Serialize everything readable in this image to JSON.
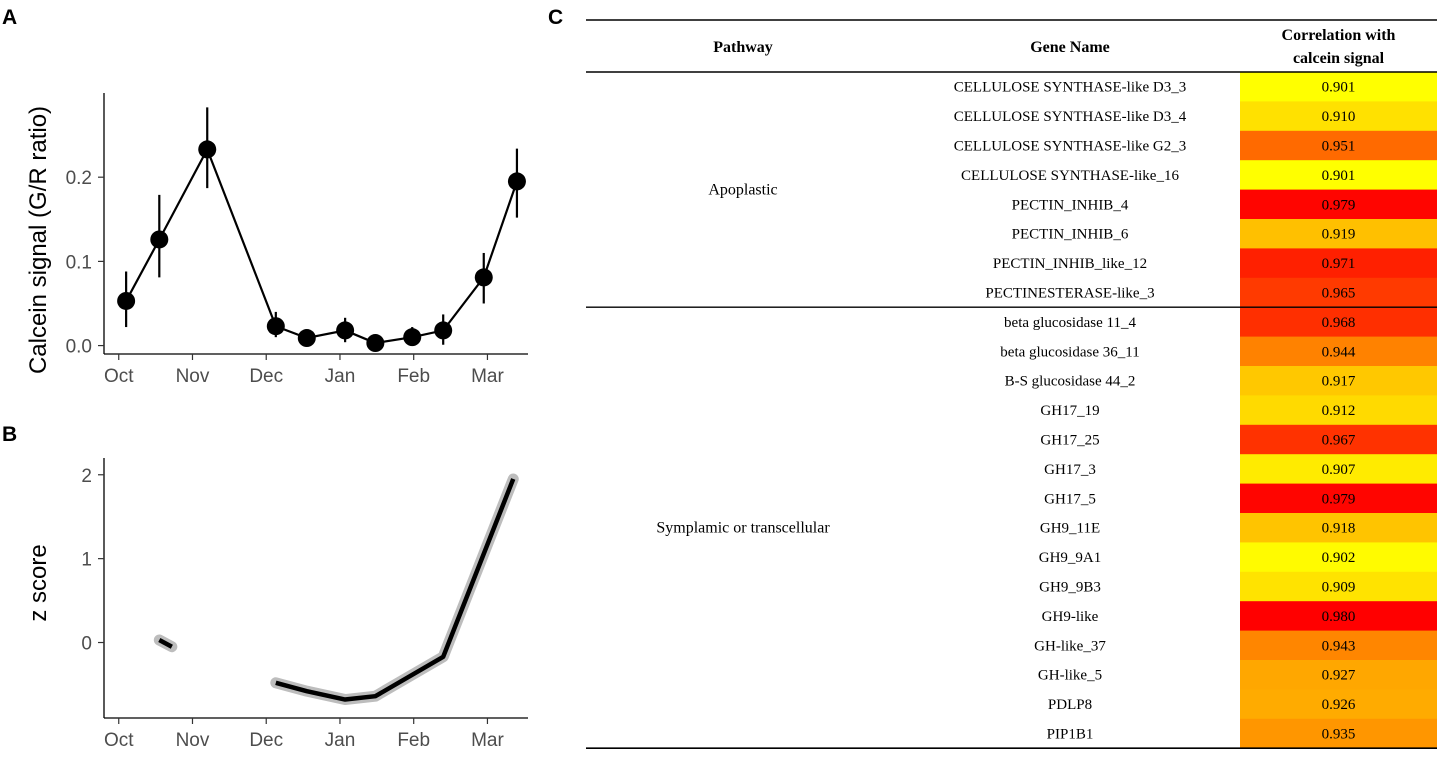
{
  "panels": {
    "a": "A",
    "b": "B",
    "c": "C"
  },
  "chart_data": [
    {
      "id": "A",
      "type": "scatter",
      "ylabel": "Calcein signal (G/R ratio)",
      "xlabel": "",
      "x_ticks": [
        "Oct",
        "Nov",
        "Dec",
        "Jan",
        "Feb",
        "Mar"
      ],
      "x_tick_positions": [
        0,
        1,
        2,
        3,
        4,
        5
      ],
      "xlim": [
        -0.2,
        5.55
      ],
      "ylim": [
        -0.01,
        0.3
      ],
      "y_ticks": [
        0.0,
        0.1,
        0.2
      ],
      "y_tick_labels": [
        "0.0",
        "0.1",
        "0.2"
      ],
      "points": [
        {
          "x": 0.1,
          "y": 0.053,
          "lo": 0.022,
          "hi": 0.088
        },
        {
          "x": 0.55,
          "y": 0.126,
          "lo": 0.081,
          "hi": 0.179
        },
        {
          "x": 1.2,
          "y": 0.233,
          "lo": 0.187,
          "hi": 0.283
        },
        {
          "x": 2.13,
          "y": 0.023,
          "lo": 0.01,
          "hi": 0.04
        },
        {
          "x": 2.55,
          "y": 0.009,
          "lo": 0.004,
          "hi": 0.016
        },
        {
          "x": 3.07,
          "y": 0.018,
          "lo": 0.004,
          "hi": 0.033
        },
        {
          "x": 3.48,
          "y": 0.003,
          "lo": 0.001,
          "hi": 0.006
        },
        {
          "x": 3.98,
          "y": 0.01,
          "lo": 0.002,
          "hi": 0.022
        },
        {
          "x": 4.4,
          "y": 0.018,
          "lo": 0.001,
          "hi": 0.037
        },
        {
          "x": 4.95,
          "y": 0.081,
          "lo": 0.05,
          "hi": 0.11
        },
        {
          "x": 5.4,
          "y": 0.195,
          "lo": 0.152,
          "hi": 0.234
        }
      ]
    },
    {
      "id": "B",
      "type": "line",
      "ylabel": "z score",
      "xlabel": "",
      "x_ticks": [
        "Oct",
        "Nov",
        "Dec",
        "Jan",
        "Feb",
        "Mar"
      ],
      "x_tick_positions": [
        0,
        1,
        2,
        3,
        4,
        5
      ],
      "xlim": [
        -0.2,
        5.55
      ],
      "ylim": [
        -0.9,
        2.2
      ],
      "y_ticks": [
        0,
        1,
        2
      ],
      "y_tick_labels": [
        "0",
        "1",
        "2"
      ],
      "segments": [
        [
          {
            "x": 0.55,
            "y": 0.03
          },
          {
            "x": 0.72,
            "y": -0.05
          }
        ],
        [
          {
            "x": 2.13,
            "y": -0.48
          },
          {
            "x": 2.55,
            "y": -0.58
          },
          {
            "x": 3.07,
            "y": -0.68
          },
          {
            "x": 3.48,
            "y": -0.64
          },
          {
            "x": 4.4,
            "y": -0.17
          },
          {
            "x": 5.35,
            "y": 1.95
          }
        ]
      ]
    },
    {
      "id": "C",
      "type": "table",
      "columns": [
        "Pathway",
        "Gene Name",
        "Correlation with calcein signal"
      ],
      "column_header_lines": [
        [
          "Pathway"
        ],
        [
          "Gene Name"
        ],
        [
          "Correlation with",
          "calcein signal"
        ]
      ],
      "groups": [
        {
          "pathway": "Apoplastic",
          "start": 0,
          "count": 8
        },
        {
          "pathway": "Symplamic or transcellular",
          "start": 8,
          "count": 15
        }
      ],
      "rows": [
        {
          "gene": "CELLULOSE SYNTHASE-like D3_3",
          "value": "0.901",
          "color": "#ffff00"
        },
        {
          "gene": "CELLULOSE SYNTHASE-like D3_4",
          "value": "0.910",
          "color": "#ffe100"
        },
        {
          "gene": "CELLULOSE SYNTHASE-like G2_3",
          "value": "0.951",
          "color": "#ff6a00"
        },
        {
          "gene": "CELLULOSE SYNTHASE-like_16",
          "value": "0.901",
          "color": "#ffff00"
        },
        {
          "gene": "PECTIN_INHIB_4",
          "value": "0.979",
          "color": "#ff0500"
        },
        {
          "gene": "PECTIN_INHIB_6",
          "value": "0.919",
          "color": "#ffc000"
        },
        {
          "gene": "PECTIN_INHIB_like_12",
          "value": "0.971",
          "color": "#ff2000"
        },
        {
          "gene": "PECTINESTERASE-like_3",
          "value": "0.965",
          "color": "#ff3a00"
        },
        {
          "gene": "beta glucosidase 11_4",
          "value": "0.968",
          "color": "#ff2f00"
        },
        {
          "gene": "beta glucosidase 36_11",
          "value": "0.944",
          "color": "#ff8200"
        },
        {
          "gene": "B-S glucosidase 44_2",
          "value": "0.917",
          "color": "#ffc800"
        },
        {
          "gene": "GH17_19",
          "value": "0.912",
          "color": "#ffda00"
        },
        {
          "gene": "GH17_25",
          "value": "0.967",
          "color": "#ff3200"
        },
        {
          "gene": "GH17_3",
          "value": "0.907",
          "color": "#ffeb00"
        },
        {
          "gene": "GH17_5",
          "value": "0.979",
          "color": "#ff0500"
        },
        {
          "gene": "GH9_11E",
          "value": "0.918",
          "color": "#ffc400"
        },
        {
          "gene": "GH9_9A1",
          "value": "0.902",
          "color": "#fffb00"
        },
        {
          "gene": "GH9_9B3",
          "value": "0.909",
          "color": "#ffe300"
        },
        {
          "gene": "GH9-like",
          "value": "0.980",
          "color": "#ff0000"
        },
        {
          "gene": "GH-like_37",
          "value": "0.943",
          "color": "#ff8600"
        },
        {
          "gene": "GH-like_5",
          "value": "0.927",
          "color": "#ffa700"
        },
        {
          "gene": "PDLP8",
          "value": "0.926",
          "color": "#ffab00"
        },
        {
          "gene": "PIP1B1",
          "value": "0.935",
          "color": "#ff9600"
        }
      ]
    }
  ]
}
